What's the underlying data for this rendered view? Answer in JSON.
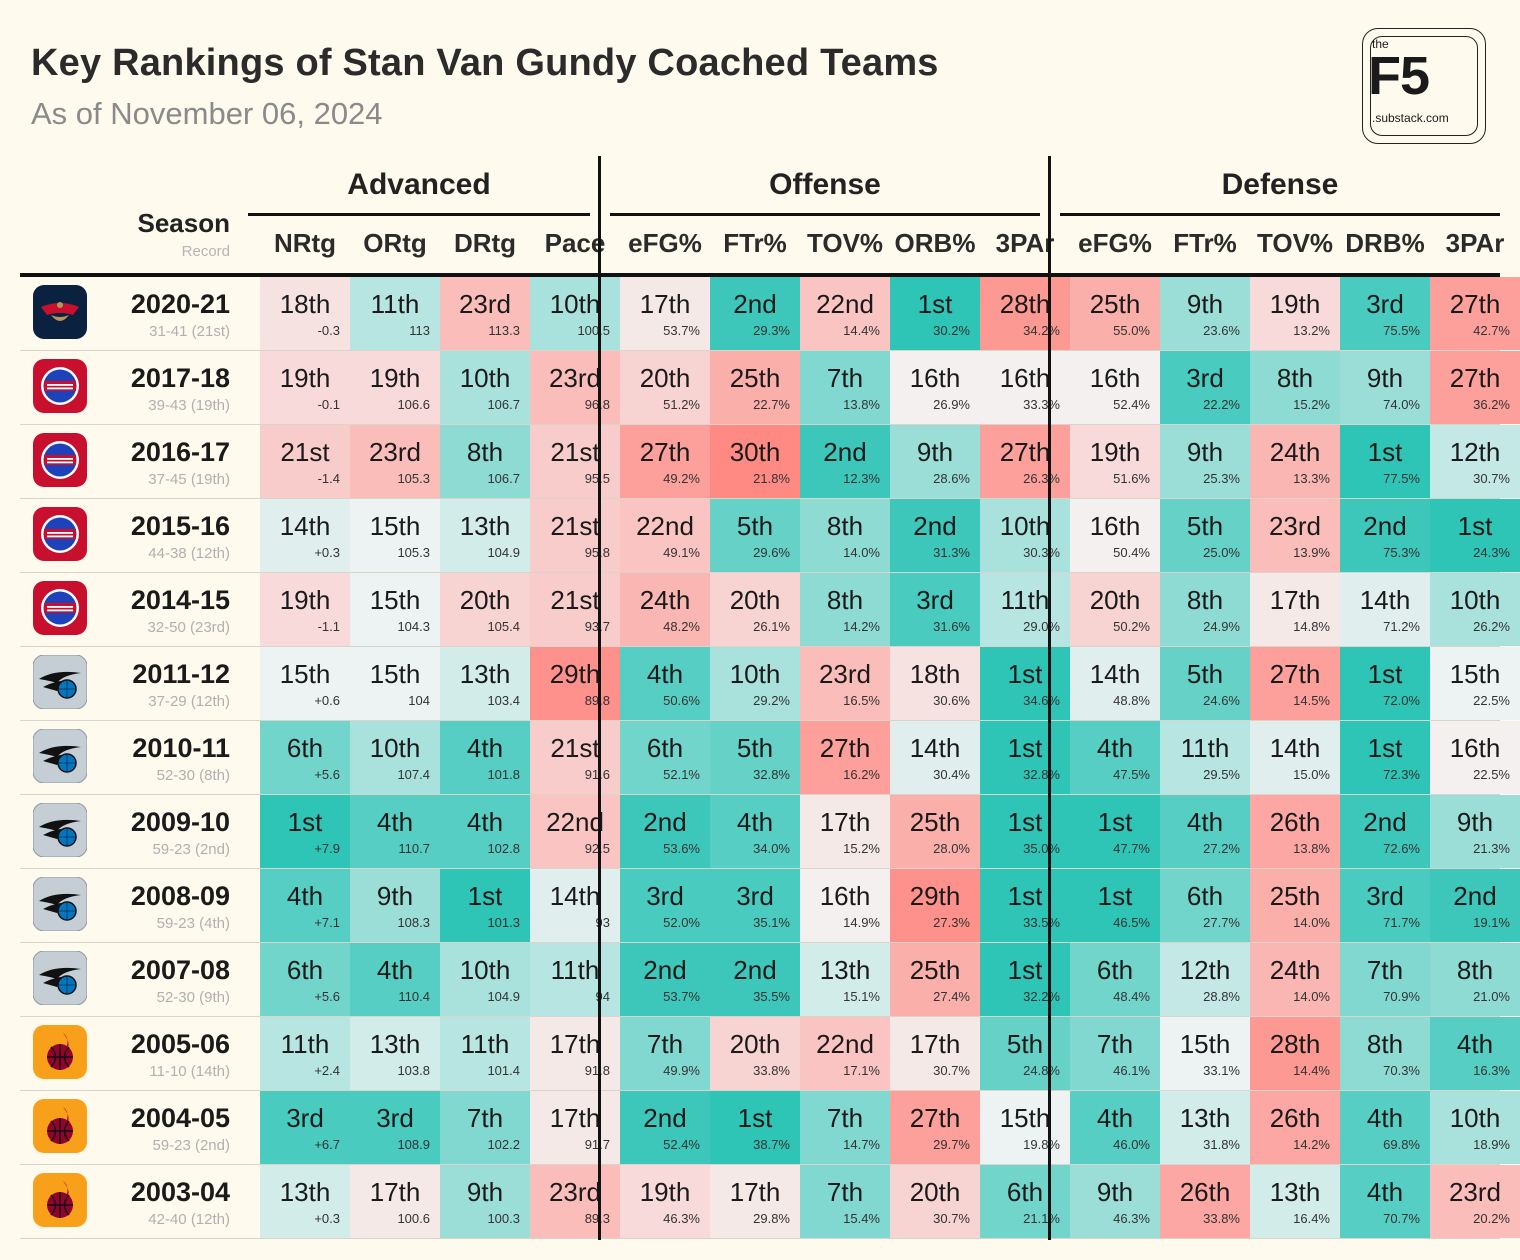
{
  "header": {
    "title": "Key Rankings of Stan Van Gundy Coached Teams",
    "subtitle": "As of November 06, 2024"
  },
  "logo": {
    "the": "the",
    "f5": "F5",
    "substack": ".substack.com"
  },
  "groups": [
    "Advanced",
    "Offense",
    "Defense"
  ],
  "columns": {
    "season": "Season",
    "record": "Record",
    "advanced": [
      "NRtg",
      "ORtg",
      "DRtg",
      "Pace"
    ],
    "offense": [
      "eFG%",
      "FTr%",
      "TOV%",
      "ORB%",
      "3PAr"
    ],
    "defense": [
      "eFG%",
      "FTr%",
      "TOV%",
      "DRB%",
      "3PAr"
    ]
  },
  "team_logos": {
    "pelicans": {
      "icon": "pelicans-logo-icon",
      "color": "#0a2240",
      "accent": "#c8102e"
    },
    "pistons": {
      "icon": "pistons-logo-icon",
      "color": "#c8102e",
      "accent": "#1d42ba"
    },
    "magic": {
      "icon": "magic-logo-icon",
      "color": "#c4ced4",
      "accent": "#0077c0"
    },
    "heat": {
      "icon": "heat-logo-icon",
      "color": "#f9a01b",
      "accent": "#98002e"
    }
  },
  "colors": {
    "best": "#2ec4b6",
    "mid": "#f4f4f4",
    "worst": "#ff8a84",
    "background": "#fffaee"
  },
  "rows": [
    {
      "team": "pelicans",
      "season": "2020-21",
      "record": "31-41 (21st)",
      "cells": [
        [
          "18th",
          "-0.3"
        ],
        [
          "11th",
          "113"
        ],
        [
          "23rd",
          "113.3"
        ],
        [
          "10th",
          "100.5"
        ],
        [
          "17th",
          "53.7%"
        ],
        [
          "2nd",
          "29.3%"
        ],
        [
          "22nd",
          "14.4%"
        ],
        [
          "1st",
          "30.2%"
        ],
        [
          "28th",
          "34.2%"
        ],
        [
          "25th",
          "55.0%"
        ],
        [
          "9th",
          "23.6%"
        ],
        [
          "19th",
          "13.2%"
        ],
        [
          "3rd",
          "75.5%"
        ],
        [
          "27th",
          "42.7%"
        ]
      ]
    },
    {
      "team": "pistons",
      "season": "2017-18",
      "record": "39-43 (19th)",
      "cells": [
        [
          "19th",
          "-0.1"
        ],
        [
          "19th",
          "106.6"
        ],
        [
          "10th",
          "106.7"
        ],
        [
          "23rd",
          "96.8"
        ],
        [
          "20th",
          "51.2%"
        ],
        [
          "25th",
          "22.7%"
        ],
        [
          "7th",
          "13.8%"
        ],
        [
          "16th",
          "26.9%"
        ],
        [
          "16th",
          "33.3%"
        ],
        [
          "16th",
          "52.4%"
        ],
        [
          "3rd",
          "22.2%"
        ],
        [
          "8th",
          "15.2%"
        ],
        [
          "9th",
          "74.0%"
        ],
        [
          "27th",
          "36.2%"
        ]
      ]
    },
    {
      "team": "pistons",
      "season": "2016-17",
      "record": "37-45 (19th)",
      "cells": [
        [
          "21st",
          "-1.4"
        ],
        [
          "23rd",
          "105.3"
        ],
        [
          "8th",
          "106.7"
        ],
        [
          "21st",
          "95.5"
        ],
        [
          "27th",
          "49.2%"
        ],
        [
          "30th",
          "21.8%"
        ],
        [
          "2nd",
          "12.3%"
        ],
        [
          "9th",
          "28.6%"
        ],
        [
          "27th",
          "26.3%"
        ],
        [
          "19th",
          "51.6%"
        ],
        [
          "9th",
          "25.3%"
        ],
        [
          "24th",
          "13.3%"
        ],
        [
          "1st",
          "77.5%"
        ],
        [
          "12th",
          "30.7%"
        ]
      ]
    },
    {
      "team": "pistons",
      "season": "2015-16",
      "record": "44-38 (12th)",
      "cells": [
        [
          "14th",
          "+0.3"
        ],
        [
          "15th",
          "105.3"
        ],
        [
          "13th",
          "104.9"
        ],
        [
          "21st",
          "95.8"
        ],
        [
          "22nd",
          "49.1%"
        ],
        [
          "5th",
          "29.6%"
        ],
        [
          "8th",
          "14.0%"
        ],
        [
          "2nd",
          "31.3%"
        ],
        [
          "10th",
          "30.3%"
        ],
        [
          "16th",
          "50.4%"
        ],
        [
          "5th",
          "25.0%"
        ],
        [
          "23rd",
          "13.9%"
        ],
        [
          "2nd",
          "75.3%"
        ],
        [
          "1st",
          "24.3%"
        ]
      ]
    },
    {
      "team": "pistons",
      "season": "2014-15",
      "record": "32-50 (23rd)",
      "cells": [
        [
          "19th",
          "-1.1"
        ],
        [
          "15th",
          "104.3"
        ],
        [
          "20th",
          "105.4"
        ],
        [
          "21st",
          "93.7"
        ],
        [
          "24th",
          "48.2%"
        ],
        [
          "20th",
          "26.1%"
        ],
        [
          "8th",
          "14.2%"
        ],
        [
          "3rd",
          "31.6%"
        ],
        [
          "11th",
          "29.0%"
        ],
        [
          "20th",
          "50.2%"
        ],
        [
          "8th",
          "24.9%"
        ],
        [
          "17th",
          "14.8%"
        ],
        [
          "14th",
          "71.2%"
        ],
        [
          "10th",
          "26.2%"
        ]
      ]
    },
    {
      "team": "magic",
      "season": "2011-12",
      "record": "37-29 (12th)",
      "cells": [
        [
          "15th",
          "+0.6"
        ],
        [
          "15th",
          "104"
        ],
        [
          "13th",
          "103.4"
        ],
        [
          "29th",
          "89.8"
        ],
        [
          "4th",
          "50.6%"
        ],
        [
          "10th",
          "29.2%"
        ],
        [
          "23rd",
          "16.5%"
        ],
        [
          "18th",
          "30.6%"
        ],
        [
          "1st",
          "34.6%"
        ],
        [
          "14th",
          "48.8%"
        ],
        [
          "5th",
          "24.6%"
        ],
        [
          "27th",
          "14.5%"
        ],
        [
          "1st",
          "72.0%"
        ],
        [
          "15th",
          "22.5%"
        ]
      ]
    },
    {
      "team": "magic",
      "season": "2010-11",
      "record": "52-30 (8th)",
      "cells": [
        [
          "6th",
          "+5.6"
        ],
        [
          "10th",
          "107.4"
        ],
        [
          "4th",
          "101.8"
        ],
        [
          "21st",
          "91.6"
        ],
        [
          "6th",
          "52.1%"
        ],
        [
          "5th",
          "32.8%"
        ],
        [
          "27th",
          "16.2%"
        ],
        [
          "14th",
          "30.4%"
        ],
        [
          "1st",
          "32.8%"
        ],
        [
          "4th",
          "47.5%"
        ],
        [
          "11th",
          "29.5%"
        ],
        [
          "14th",
          "15.0%"
        ],
        [
          "1st",
          "72.3%"
        ],
        [
          "16th",
          "22.5%"
        ]
      ]
    },
    {
      "team": "magic",
      "season": "2009-10",
      "record": "59-23 (2nd)",
      "cells": [
        [
          "1st",
          "+7.9"
        ],
        [
          "4th",
          "110.7"
        ],
        [
          "4th",
          "102.8"
        ],
        [
          "22nd",
          "92.5"
        ],
        [
          "2nd",
          "53.6%"
        ],
        [
          "4th",
          "34.0%"
        ],
        [
          "17th",
          "15.2%"
        ],
        [
          "25th",
          "28.0%"
        ],
        [
          "1st",
          "35.0%"
        ],
        [
          "1st",
          "47.7%"
        ],
        [
          "4th",
          "27.2%"
        ],
        [
          "26th",
          "13.8%"
        ],
        [
          "2nd",
          "72.6%"
        ],
        [
          "9th",
          "21.3%"
        ]
      ]
    },
    {
      "team": "magic",
      "season": "2008-09",
      "record": "59-23 (4th)",
      "cells": [
        [
          "4th",
          "+7.1"
        ],
        [
          "9th",
          "108.3"
        ],
        [
          "1st",
          "101.3"
        ],
        [
          "14th",
          "93"
        ],
        [
          "3rd",
          "52.0%"
        ],
        [
          "3rd",
          "35.1%"
        ],
        [
          "16th",
          "14.9%"
        ],
        [
          "29th",
          "27.3%"
        ],
        [
          "1st",
          "33.5%"
        ],
        [
          "1st",
          "46.5%"
        ],
        [
          "6th",
          "27.7%"
        ],
        [
          "25th",
          "14.0%"
        ],
        [
          "3rd",
          "71.7%"
        ],
        [
          "2nd",
          "19.1%"
        ]
      ]
    },
    {
      "team": "magic",
      "season": "2007-08",
      "record": "52-30 (9th)",
      "cells": [
        [
          "6th",
          "+5.6"
        ],
        [
          "4th",
          "110.4"
        ],
        [
          "10th",
          "104.9"
        ],
        [
          "11th",
          "94"
        ],
        [
          "2nd",
          "53.7%"
        ],
        [
          "2nd",
          "35.5%"
        ],
        [
          "13th",
          "15.1%"
        ],
        [
          "25th",
          "27.4%"
        ],
        [
          "1st",
          "32.2%"
        ],
        [
          "6th",
          "48.4%"
        ],
        [
          "12th",
          "28.8%"
        ],
        [
          "24th",
          "14.0%"
        ],
        [
          "7th",
          "70.9%"
        ],
        [
          "8th",
          "21.0%"
        ]
      ]
    },
    {
      "team": "heat",
      "season": "2005-06",
      "record": "11-10 (14th)",
      "cells": [
        [
          "11th",
          "+2.4"
        ],
        [
          "13th",
          "103.8"
        ],
        [
          "11th",
          "101.4"
        ],
        [
          "17th",
          "91.8"
        ],
        [
          "7th",
          "49.9%"
        ],
        [
          "20th",
          "33.8%"
        ],
        [
          "22nd",
          "17.1%"
        ],
        [
          "17th",
          "30.7%"
        ],
        [
          "5th",
          "24.8%"
        ],
        [
          "7th",
          "46.1%"
        ],
        [
          "15th",
          "33.1%"
        ],
        [
          "28th",
          "14.4%"
        ],
        [
          "8th",
          "70.3%"
        ],
        [
          "4th",
          "16.3%"
        ]
      ]
    },
    {
      "team": "heat",
      "season": "2004-05",
      "record": "59-23 (2nd)",
      "cells": [
        [
          "3rd",
          "+6.7"
        ],
        [
          "3rd",
          "108.9"
        ],
        [
          "7th",
          "102.2"
        ],
        [
          "17th",
          "91.7"
        ],
        [
          "2nd",
          "52.4%"
        ],
        [
          "1st",
          "38.7%"
        ],
        [
          "7th",
          "14.7%"
        ],
        [
          "27th",
          "29.7%"
        ],
        [
          "15th",
          "19.8%"
        ],
        [
          "4th",
          "46.0%"
        ],
        [
          "13th",
          "31.8%"
        ],
        [
          "26th",
          "14.2%"
        ],
        [
          "4th",
          "69.8%"
        ],
        [
          "10th",
          "18.9%"
        ]
      ]
    },
    {
      "team": "heat",
      "season": "2003-04",
      "record": "42-40 (12th)",
      "cells": [
        [
          "13th",
          "+0.3"
        ],
        [
          "17th",
          "100.6"
        ],
        [
          "9th",
          "100.3"
        ],
        [
          "23rd",
          "89.3"
        ],
        [
          "19th",
          "46.3%"
        ],
        [
          "17th",
          "29.8%"
        ],
        [
          "7th",
          "15.4%"
        ],
        [
          "20th",
          "30.7%"
        ],
        [
          "6th",
          "21.1%"
        ],
        [
          "9th",
          "46.3%"
        ],
        [
          "26th",
          "33.8%"
        ],
        [
          "13th",
          "16.4%"
        ],
        [
          "4th",
          "70.7%"
        ],
        [
          "23rd",
          "20.2%"
        ]
      ]
    }
  ]
}
